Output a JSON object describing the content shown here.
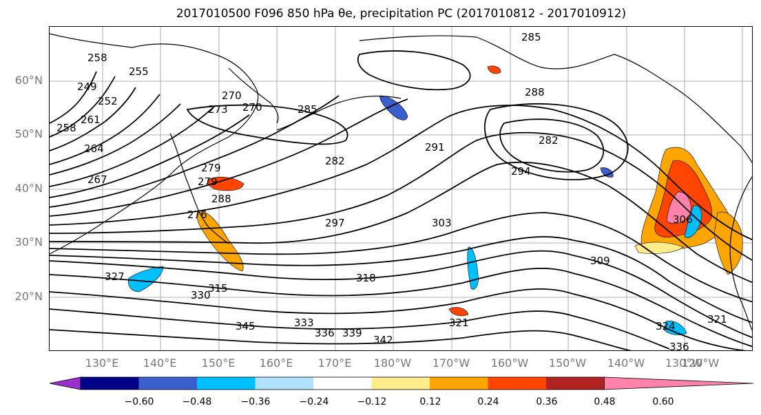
{
  "title": "2017010500 F096 850 hPa θe, precipitation PC (2017010812 - 2017010912)",
  "latitude_labels": [
    "60°N",
    "50°N",
    "40°N",
    "30°N",
    "20°N"
  ],
  "longitude_labels": [
    "130°E",
    "140°E",
    "150°E",
    "160°E",
    "170°E",
    "180°W",
    "170°W",
    "160°W",
    "150°W",
    "140°W",
    "130°W",
    "120°W"
  ],
  "colorbar": {
    "colors": [
      "#9932cc",
      "#00008b",
      "#3a5fcd",
      "#00bfff",
      "#b0e2ff",
      "#ffffff",
      "#ffec8b",
      "#ffa500",
      "#ff4500",
      "#b22222",
      "#ff82ab"
    ],
    "ticks": [
      "−0.60",
      "−0.48",
      "−0.36",
      "−0.24",
      "−0.12",
      "0.12",
      "0.24",
      "0.36",
      "0.48",
      "0.60"
    ]
  },
  "contour_labels": [
    "258",
    "249",
    "252",
    "255",
    "258",
    "261",
    "264",
    "267",
    "270",
    "273",
    "279",
    "282",
    "285",
    "288",
    "291",
    "294",
    "297",
    "303",
    "306",
    "309",
    "315",
    "321",
    "324",
    "327",
    "330",
    "333",
    "336",
    "339",
    "342",
    "345",
    "285",
    "288",
    "282",
    "270",
    "276",
    "279",
    "318",
    "336",
    "321"
  ]
}
